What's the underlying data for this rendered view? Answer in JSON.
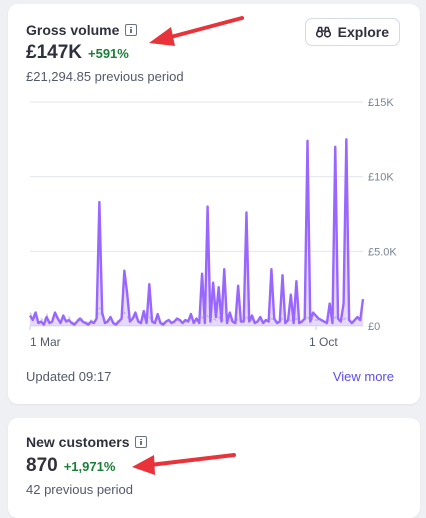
{
  "gross_volume": {
    "title": "Gross volume",
    "info_icon": "info-icon",
    "value": "£147K",
    "delta": "+591%",
    "previous": "£21,294.85 previous period",
    "explore_label": "Explore",
    "explore_icon": "binoculars-icon",
    "updated": "Updated 09:17",
    "view_more": "View more",
    "chart_data": {
      "type": "line",
      "x_tick_labels": [
        "1 Mar",
        "1 Oct"
      ],
      "y_tick_labels": [
        "£15K",
        "£10K",
        "£5.0K",
        "£0"
      ],
      "ylim": [
        0,
        15000
      ],
      "grid": true,
      "series": [
        {
          "color": "#9966ff",
          "values": [
            700,
            400,
            900,
            200,
            300,
            100,
            600,
            200,
            300,
            900,
            500,
            200,
            700,
            300,
            400,
            200,
            100,
            300,
            500,
            300,
            200,
            100,
            300,
            200,
            500,
            8300,
            900,
            200,
            300,
            600,
            200,
            100,
            300,
            500,
            3700,
            2200,
            300,
            500,
            900,
            300,
            200,
            1000,
            200,
            2800,
            300,
            200,
            800,
            200,
            100,
            300,
            400,
            200,
            300,
            500,
            400,
            200,
            400,
            300,
            800,
            200,
            500,
            200,
            3500,
            200,
            8000,
            300,
            2900,
            600,
            2600,
            300,
            3800,
            200,
            900,
            300,
            200,
            2700,
            300,
            300,
            7600,
            300,
            700,
            200,
            300,
            600,
            200,
            400,
            300,
            3800,
            500,
            200,
            300,
            3400,
            200,
            400,
            2100,
            200,
            3000,
            200,
            300,
            500,
            12400,
            300,
            900,
            700,
            500,
            400,
            300,
            200,
            1500,
            200,
            12000,
            500,
            300,
            1500,
            12500,
            400,
            200,
            400,
            600,
            400,
            1800
          ],
          "area": true
        },
        {
          "color": "#cfd3da",
          "dashed": true,
          "values": [
            900,
            600,
            1000,
            400,
            500,
            300,
            800,
            300,
            500,
            700,
            600,
            300,
            500,
            400,
            600,
            300,
            200,
            400,
            600,
            400,
            300,
            200,
            400,
            300,
            500,
            1200,
            600,
            300,
            400,
            500,
            300,
            200,
            400,
            500,
            900,
            700,
            300,
            500,
            600,
            300,
            300,
            700,
            200,
            600,
            300,
            300,
            500,
            300,
            200,
            300,
            400,
            300,
            300,
            400,
            400,
            300,
            400,
            300,
            500,
            300,
            400,
            300,
            600,
            300,
            700,
            300,
            500,
            400,
            600,
            300,
            500,
            300,
            400,
            300,
            300,
            500,
            300,
            300,
            700,
            300,
            400,
            300,
            300,
            400,
            300,
            400,
            300,
            500,
            400,
            300,
            300,
            500,
            300,
            400,
            400,
            300,
            500,
            300,
            300,
            400,
            700,
            300,
            500,
            400,
            400,
            400,
            300,
            300,
            500,
            300,
            600,
            400,
            300,
            400,
            600,
            400,
            300,
            400,
            400,
            400,
            500
          ],
          "area": false
        }
      ]
    }
  },
  "new_customers": {
    "title": "New customers",
    "info_icon": "info-icon",
    "value": "870",
    "delta": "+1,971%",
    "previous": "42 previous period"
  },
  "colors": {
    "arrow": "#e8333a",
    "accent": "#5b4df5",
    "positive": "#1a7f37"
  }
}
